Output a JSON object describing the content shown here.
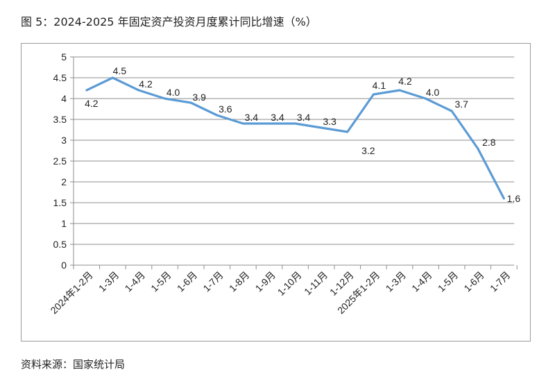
{
  "title": "图 5：2024-2025 年固定资产投资月度累计同比增速（%）",
  "source": "资料来源：国家统计局",
  "chart_data": {
    "type": "line",
    "title": "图 5：2024-2025 年固定资产投资月度累计同比增速（%）",
    "categories": [
      "2024年1-2月",
      "1-3月",
      "1-4月",
      "1-5月",
      "1-6月",
      "1-7月",
      "1-8月",
      "1-9月",
      "1-10月",
      "1-11月",
      "1-12月",
      "2025年1-2月",
      "1-3月",
      "1-4月",
      "1-5月",
      "1-6月",
      "1-7月"
    ],
    "values": [
      4.2,
      4.5,
      4.2,
      4.0,
      3.9,
      3.6,
      3.4,
      3.4,
      3.4,
      3.3,
      3.2,
      4.1,
      4.2,
      4.0,
      3.7,
      2.8,
      1.6
    ],
    "data_labels": [
      "4.2",
      "4.5",
      "4.2",
      "4.0",
      "3.9",
      "3.6",
      "3.4",
      "3.4",
      "3.4",
      "3.3",
      "3.2",
      "4.1",
      "4.2",
      "4.0",
      "3.7",
      "2.8",
      "1.6"
    ],
    "yticks": [
      "0",
      "0.5",
      "1",
      "1.5",
      "2",
      "2.5",
      "3",
      "3.5",
      "4",
      "4.5",
      "5"
    ],
    "ylim": [
      0,
      5
    ],
    "grid": true,
    "line_color": "#5B9BD5",
    "xlabel": "",
    "ylabel": ""
  }
}
